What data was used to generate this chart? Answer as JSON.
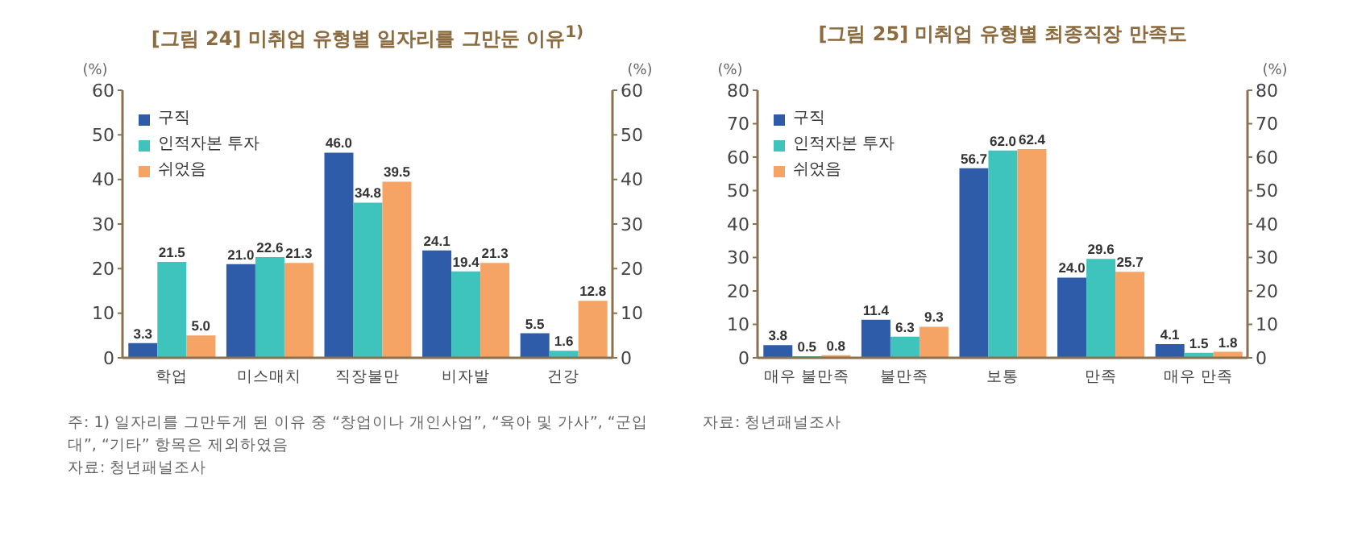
{
  "chart_data": [
    {
      "type": "bar",
      "title": "[그림 24] 미취업 유형별 일자리를 그만둔 이유$^{1)}$",
      "ylabel": "(%)",
      "y2label": "(%)",
      "categories": [
        "학업",
        "미스매치",
        "직장불만",
        "비자발",
        "건강"
      ],
      "series": [
        {
          "name": "구직",
          "color": "#2e5ca8",
          "values": [
            3.3,
            21.0,
            46.0,
            24.1,
            5.5
          ],
          "value_labels": [
            "3.3",
            "21.0",
            "46.0",
            "24.1",
            "5.5"
          ]
        },
        {
          "name": "인적자본 투자",
          "color": "#3ec4bd",
          "values": [
            21.5,
            22.6,
            34.8,
            19.4,
            1.6
          ],
          "value_labels": [
            "21.5",
            "22.6",
            "34.8",
            "19.4",
            "1.6"
          ]
        },
        {
          "name": "쉬었음",
          "color": "#f6a466",
          "values": [
            5.0,
            21.3,
            39.5,
            21.3,
            12.8
          ],
          "value_labels": [
            "5.0",
            "21.3",
            "39.5",
            "21.3",
            "12.8"
          ]
        }
      ],
      "ylim": [
        0,
        60
      ],
      "yticks": [
        0,
        10,
        20,
        30,
        40,
        50,
        60
      ],
      "y2lim": [
        0,
        60
      ],
      "y2ticks": [
        0,
        10,
        20,
        30,
        40,
        50,
        60
      ],
      "grid": false,
      "legend": "top left",
      "annotations": [
        "주: 1) 일자리를 그만두게 된 이유 중 “창업이나 개인사업”, “육아 및 가사”, “군입대”, “기타” 항목은 제외하였음",
        "자료: 청년패널조사"
      ]
    },
    {
      "type": "bar",
      "title": "[그림 25] 미취업 유형별 최종직장 만족도",
      "ylabel": "(%)",
      "y2label": "(%)",
      "categories": [
        "매우 불만족",
        "불만족",
        "보통",
        "만족",
        "매우 만족"
      ],
      "series": [
        {
          "name": "구직",
          "color": "#2e5ca8",
          "values": [
            3.8,
            11.4,
            56.7,
            24.0,
            4.1
          ],
          "value_labels": [
            "3.8",
            "11.4",
            "56.7",
            "24.0",
            "4.1"
          ]
        },
        {
          "name": "인적자본 투자",
          "color": "#3ec4bd",
          "values": [
            0.5,
            6.3,
            62.0,
            29.6,
            1.5
          ],
          "value_labels": [
            "0.5",
            "6.3",
            "62.0",
            "29.6",
            "1.5"
          ]
        },
        {
          "name": "쉬었음",
          "color": "#f6a466",
          "values": [
            0.8,
            9.3,
            62.4,
            25.7,
            1.8
          ],
          "value_labels": [
            "0.8",
            "9.3",
            "62.4",
            "25.7",
            "1.8"
          ]
        }
      ],
      "ylim": [
        0,
        80
      ],
      "yticks": [
        0,
        10,
        20,
        30,
        40,
        50,
        60,
        70,
        80
      ],
      "y2lim": [
        0,
        80
      ],
      "y2ticks": [
        0,
        10,
        20,
        30,
        40,
        50,
        60,
        70,
        80
      ],
      "grid": false,
      "legend": "top left",
      "annotations": [
        "자료: 청년패널조사"
      ]
    }
  ]
}
